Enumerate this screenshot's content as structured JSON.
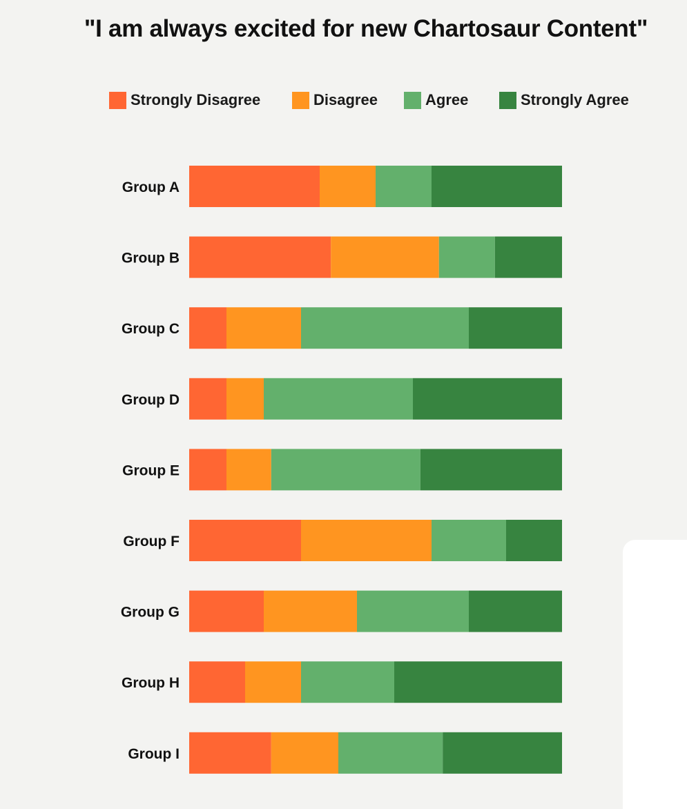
{
  "chart_data": {
    "type": "bar",
    "orientation": "horizontal",
    "stacked": true,
    "normalized": true,
    "title": "\"I am always excited for new Chartosaur Content\"",
    "categories": [
      "Group A",
      "Group B",
      "Group C",
      "Group D",
      "Group E",
      "Group F",
      "Group G",
      "Group H",
      "Group I"
    ],
    "series": [
      {
        "name": "Strongly Disagree",
        "color": "#ff6633",
        "values": [
          35,
          38,
          10,
          10,
          10,
          30,
          20,
          15,
          22
        ]
      },
      {
        "name": "Disagree",
        "color": "#ff9520",
        "values": [
          15,
          29,
          20,
          10,
          12,
          35,
          25,
          15,
          18
        ]
      },
      {
        "name": "Agree",
        "color": "#63b06c",
        "values": [
          15,
          15,
          45,
          40,
          40,
          20,
          30,
          25,
          28
        ]
      },
      {
        "name": "Strongly Agree",
        "color": "#378440",
        "values": [
          35,
          18,
          25,
          40,
          38,
          15,
          25,
          45,
          32
        ]
      }
    ],
    "xlim": [
      0,
      100
    ],
    "legend_position": "top",
    "grid": false
  }
}
